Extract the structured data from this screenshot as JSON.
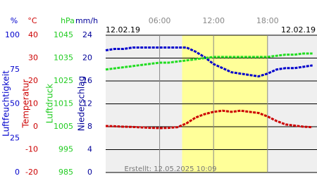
{
  "chart_data": {
    "type": "line",
    "date_left": "12.02.19",
    "date_right": "12.02.19",
    "footer": "Erstellt: 12.05.2025 10:09",
    "xlim": [
      0,
      23.5
    ],
    "xticks": [
      {
        "value": 6,
        "label": "06:00"
      },
      {
        "value": 12,
        "label": "12:00"
      },
      {
        "value": 18,
        "label": "18:00"
      }
    ],
    "daylight": [
      8.5,
      18
    ],
    "axes": [
      {
        "unit": "%",
        "title": "Luftfeuchtigkeit",
        "color": "#0000cc",
        "lim": [
          0,
          100
        ],
        "ticks": [
          100,
          75,
          50,
          25,
          0
        ]
      },
      {
        "unit": "°C",
        "title": "Temperatur",
        "color": "#cc0000",
        "lim": [
          -20,
          40
        ],
        "ticks": [
          40,
          30,
          20,
          10,
          0,
          -10,
          -20
        ]
      },
      {
        "unit": "hPa",
        "title": "Luftdruck",
        "color": "#22cc22",
        "lim": [
          985,
          1045
        ],
        "ticks": [
          1045,
          1035,
          1025,
          1015,
          1005,
          995,
          985
        ]
      },
      {
        "unit": "mm/h",
        "title": "Niederschlag",
        "color": "#000099",
        "lim": [
          0,
          24
        ],
        "ticks": [
          24,
          20,
          16,
          12,
          8,
          4,
          0
        ]
      }
    ],
    "x": [
      0,
      1,
      2,
      3,
      4,
      5,
      6,
      7,
      8,
      9,
      10,
      11,
      12,
      13,
      14,
      15,
      16,
      17,
      18,
      19,
      20,
      21,
      22,
      23
    ],
    "series": [
      {
        "name": "Luftfeuchtigkeit",
        "axis": 0,
        "color": "#0000cc",
        "values": [
          89,
          90,
          90,
          91,
          91,
          91,
          91,
          91,
          91,
          91,
          88,
          84,
          79,
          76,
          73,
          72,
          71,
          70,
          72,
          75,
          76,
          76,
          77,
          78
        ]
      },
      {
        "name": "Luftdruck",
        "axis": 2,
        "color": "#22dd22",
        "values": [
          1030,
          1030.5,
          1031,
          1031.5,
          1032,
          1032.5,
          1033,
          1033,
          1033.5,
          1034,
          1034.5,
          1035,
          1035.5,
          1035.5,
          1035.5,
          1035.5,
          1035.5,
          1035.5,
          1035.5,
          1036,
          1036.5,
          1036.5,
          1037,
          1037
        ]
      },
      {
        "name": "Temperatur",
        "axis": 1,
        "color": "#cc0000",
        "values": [
          0.3,
          0.2,
          0,
          -0.1,
          -0.3,
          -0.5,
          -0.6,
          -0.5,
          -0.2,
          1.5,
          4,
          5.5,
          6.5,
          7,
          6.5,
          7,
          6.5,
          6,
          4.5,
          2.5,
          1,
          0.5,
          0,
          -0.2
        ]
      }
    ]
  }
}
